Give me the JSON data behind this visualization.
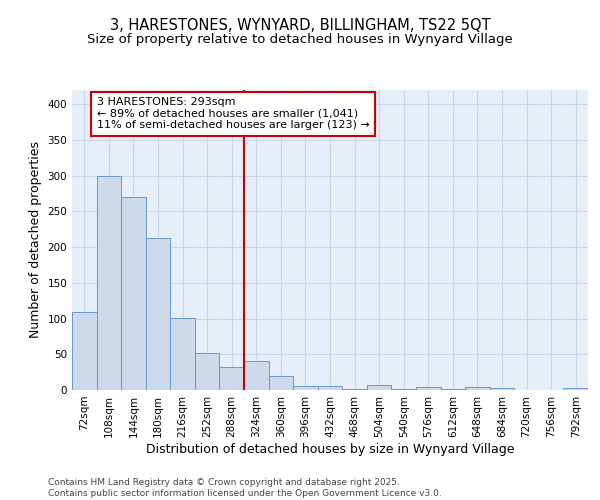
{
  "title_line1": "3, HARESTONES, WYNYARD, BILLINGHAM, TS22 5QT",
  "title_line2": "Size of property relative to detached houses in Wynyard Village",
  "xlabel": "Distribution of detached houses by size in Wynyard Village",
  "ylabel": "Number of detached properties",
  "bin_labels": [
    "72sqm",
    "108sqm",
    "144sqm",
    "180sqm",
    "216sqm",
    "252sqm",
    "288sqm",
    "324sqm",
    "360sqm",
    "396sqm",
    "432sqm",
    "468sqm",
    "504sqm",
    "540sqm",
    "576sqm",
    "612sqm",
    "648sqm",
    "684sqm",
    "720sqm",
    "756sqm",
    "792sqm"
  ],
  "bar_heights": [
    109,
    299,
    270,
    213,
    101,
    52,
    32,
    41,
    19,
    6,
    6,
    2,
    7,
    2,
    4,
    2,
    4,
    3,
    0,
    0,
    3
  ],
  "bar_color": "#ccdaec",
  "bar_edge_color": "#6699cc",
  "vline_x": 6.5,
  "vline_color": "#cc0000",
  "annotation_text": "3 HARESTONES: 293sqm\n← 89% of detached houses are smaller (1,041)\n11% of semi-detached houses are larger (123) →",
  "annotation_box_color": "#ffffff",
  "annotation_box_edge": "#cc0000",
  "ylim": [
    0,
    420
  ],
  "yticks": [
    0,
    50,
    100,
    150,
    200,
    250,
    300,
    350,
    400
  ],
  "grid_color": "#c8d4e8",
  "background_color": "#e8eef8",
  "footer_text": "Contains HM Land Registry data © Crown copyright and database right 2025.\nContains public sector information licensed under the Open Government Licence v3.0.",
  "title_fontsize": 10.5,
  "subtitle_fontsize": 9.5,
  "axis_label_fontsize": 9,
  "tick_fontsize": 7.5,
  "annotation_fontsize": 8,
  "footer_fontsize": 6.5
}
